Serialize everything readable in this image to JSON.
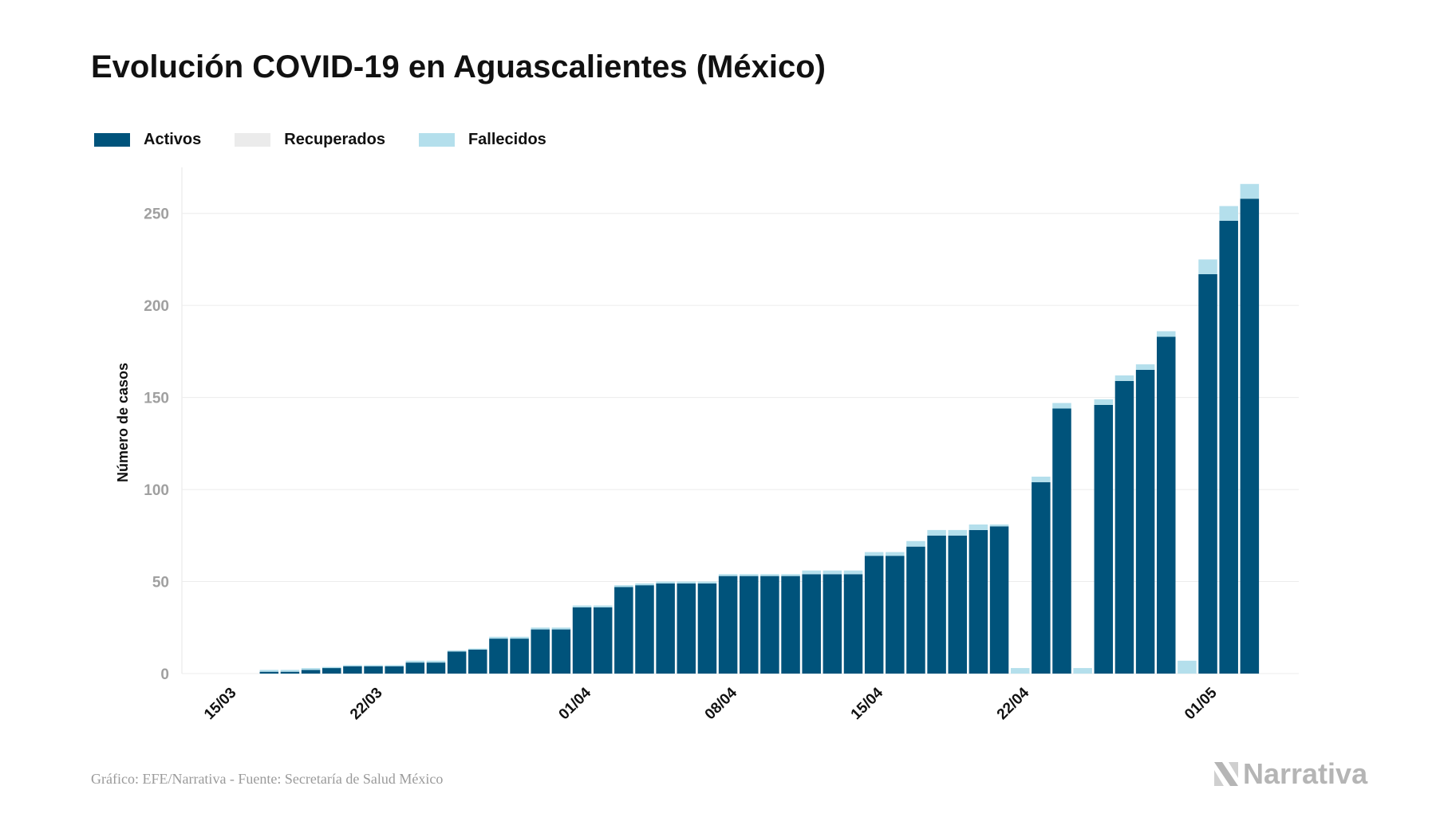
{
  "title": "Evolución COVID-19 en Aguascalientes (México)",
  "legend": [
    {
      "label": "Activos",
      "color": "#00537b"
    },
    {
      "label": "Recuperados",
      "color": "#ebebeb"
    },
    {
      "label": "Fallecidos",
      "color": "#b4dfec"
    }
  ],
  "footer": {
    "source": "Gráfico: EFE/Narrativa - Fuente: Secretaría de Salud México",
    "brand": "Narrativa"
  },
  "chart_data": {
    "type": "bar",
    "stacked": true,
    "ylabel": "Número de casos",
    "xlabel": "",
    "ylim": [
      0,
      275
    ],
    "yticks": [
      0,
      50,
      100,
      150,
      200,
      250
    ],
    "grid": true,
    "legend_position": "top-left",
    "xtick_labels": [
      {
        "label": "15/03",
        "index": 0
      },
      {
        "label": "22/03",
        "index": 7
      },
      {
        "label": "01/04",
        "index": 17
      },
      {
        "label": "08/04",
        "index": 24
      },
      {
        "label": "15/04",
        "index": 31
      },
      {
        "label": "22/04",
        "index": 38
      },
      {
        "label": "01/05",
        "index": 47
      }
    ],
    "categories": [
      "15/03",
      "16/03",
      "17/03",
      "18/03",
      "19/03",
      "20/03",
      "21/03",
      "22/03",
      "23/03",
      "24/03",
      "25/03",
      "26/03",
      "27/03",
      "28/03",
      "29/03",
      "30/03",
      "31/03",
      "01/04",
      "02/04",
      "03/04",
      "04/04",
      "05/04",
      "06/04",
      "07/04",
      "08/04",
      "09/04",
      "10/04",
      "11/04",
      "12/04",
      "13/04",
      "14/04",
      "15/04",
      "16/04",
      "17/04",
      "18/04",
      "19/04",
      "20/04",
      "21/04",
      "22/04",
      "23/04",
      "24/04",
      "25/04",
      "26/04",
      "27/04",
      "28/04",
      "29/04",
      "30/04",
      "01/05",
      "02/05",
      "03/05",
      "04/05",
      "05/05"
    ],
    "series": [
      {
        "name": "Activos",
        "color": "#00537b",
        "values": [
          null,
          null,
          1,
          1,
          2,
          3,
          4,
          4,
          4,
          6,
          6,
          12,
          13,
          19,
          19,
          24,
          24,
          36,
          36,
          47,
          48,
          49,
          49,
          49,
          53,
          53,
          53,
          53,
          54,
          54,
          54,
          64,
          64,
          69,
          75,
          75,
          78,
          80,
          0,
          104,
          144,
          0,
          146,
          159,
          165,
          183,
          0,
          217,
          246,
          258,
          null,
          null
        ]
      },
      {
        "name": "Recuperados",
        "color": "#ebebeb",
        "values": [
          null,
          null,
          0,
          0,
          0,
          0,
          0,
          0,
          0,
          0,
          0,
          0,
          0,
          0,
          0,
          0,
          0,
          0,
          0,
          0,
          0,
          0,
          0,
          0,
          0,
          0,
          0,
          0,
          0,
          0,
          0,
          0,
          0,
          0,
          0,
          0,
          0,
          0,
          0,
          0,
          0,
          0,
          0,
          0,
          0,
          0,
          0,
          0,
          0,
          0,
          null,
          null
        ]
      },
      {
        "name": "Fallecidos",
        "color": "#b4dfec",
        "values": [
          null,
          null,
          1,
          1,
          1,
          0.6,
          0.6,
          0.6,
          0.6,
          1,
          1,
          0.6,
          0.6,
          1,
          1,
          1,
          1,
          1,
          1,
          1,
          1,
          1,
          1,
          1,
          1,
          1,
          1,
          1,
          2,
          2,
          2,
          2,
          2,
          3,
          3,
          3,
          3,
          1,
          3,
          3,
          3,
          3,
          3,
          3,
          3,
          3,
          7,
          8,
          8,
          8,
          null,
          null
        ]
      }
    ]
  }
}
